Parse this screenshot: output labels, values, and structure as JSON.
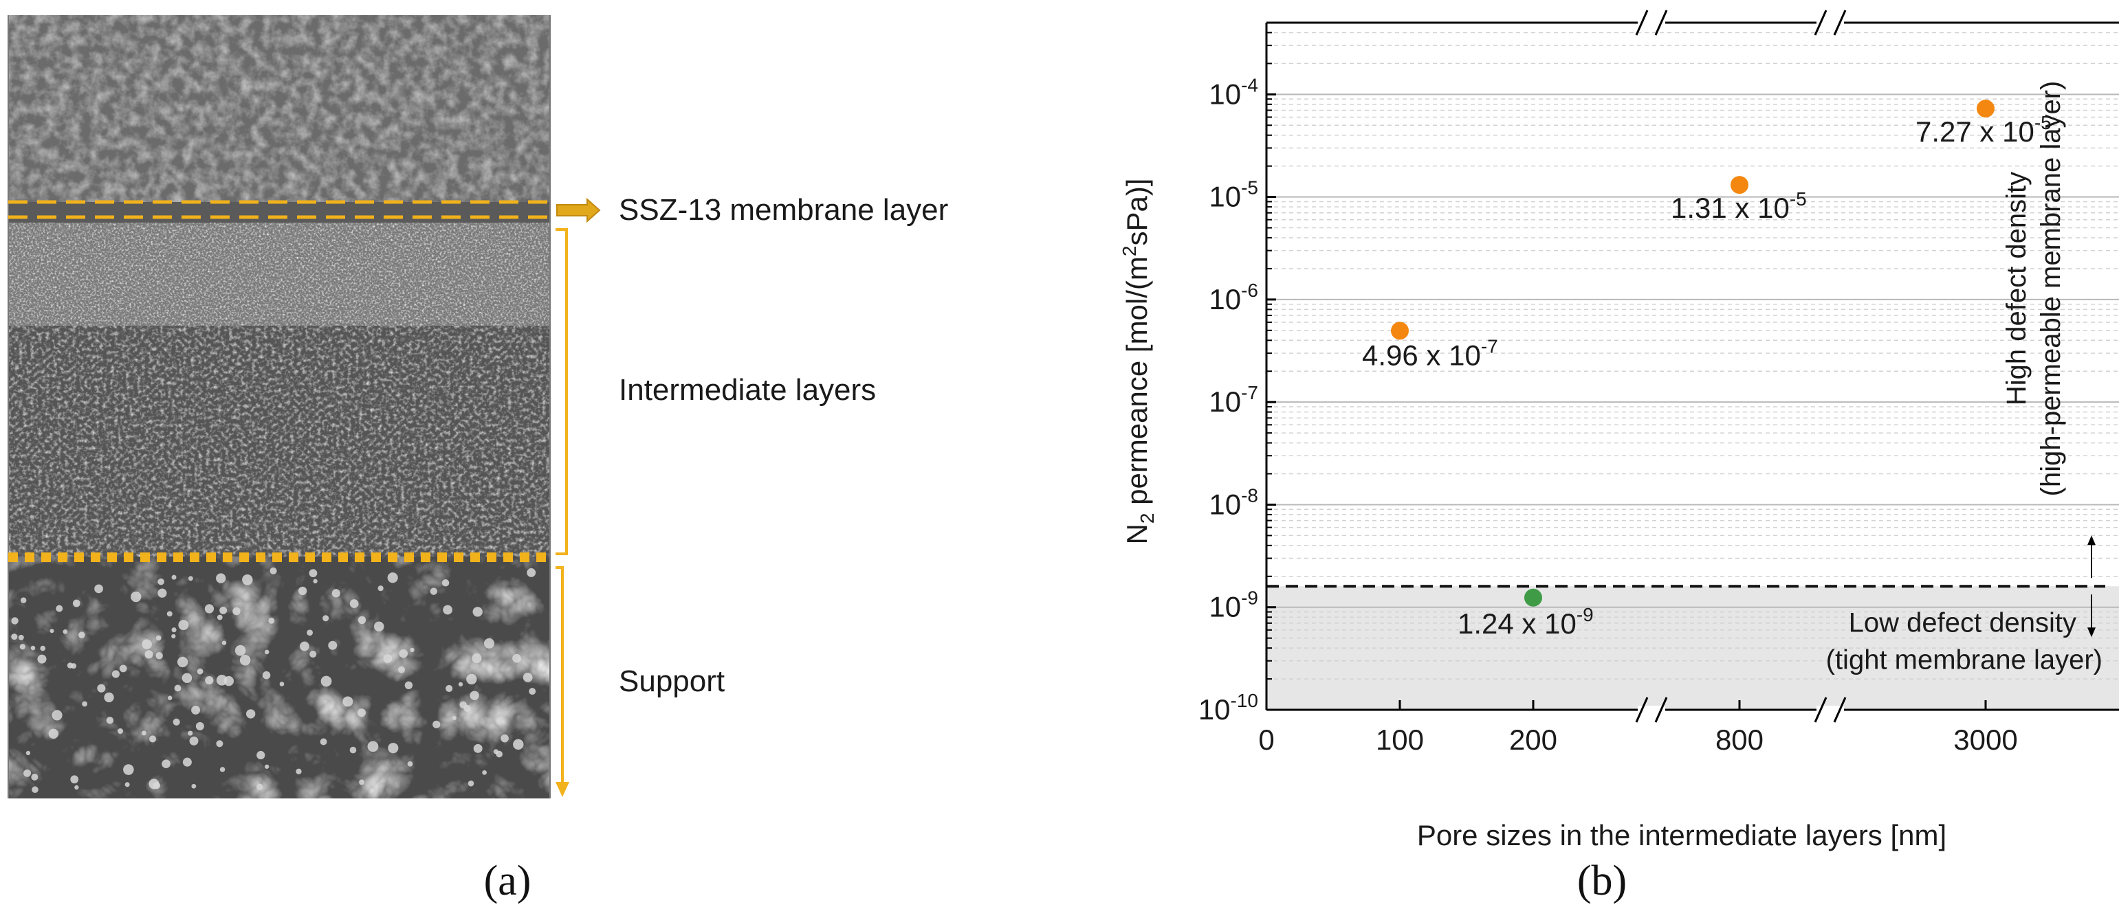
{
  "panel_a": {
    "label": "(a)",
    "layers": [
      {
        "label": "SSZ-13 membrane layer"
      },
      {
        "label": "Intermediate layers"
      },
      {
        "label": "Support"
      }
    ],
    "accent_color": "#f2b21b"
  },
  "panel_b": {
    "label": "(b)"
  },
  "chart_data": {
    "type": "scatter",
    "y_scale": "log",
    "ylim": [
      1e-10,
      0.0005
    ],
    "y_ticks": [
      {
        "value": 1e-10,
        "base": "10",
        "exp": "-10"
      },
      {
        "value": 1e-09,
        "base": "10",
        "exp": "-9"
      },
      {
        "value": 1e-08,
        "base": "10",
        "exp": "-8"
      },
      {
        "value": 1e-07,
        "base": "10",
        "exp": "-7"
      },
      {
        "value": 1e-06,
        "base": "10",
        "exp": "-6"
      },
      {
        "value": 1e-05,
        "base": "10",
        "exp": "-5"
      },
      {
        "value": 0.0001,
        "base": "10",
        "exp": "-4"
      }
    ],
    "x_ticks": [
      "0",
      "100",
      "200",
      "800",
      "3000"
    ],
    "xlabel": "Pore sizes in the intermediate layers [nm]",
    "ylabel": {
      "a": "N",
      "sub": "2",
      "b": " permeance [mol/(m",
      "sup": "2",
      "c": "sPa)]"
    },
    "grid": true,
    "points": [
      {
        "x": 100,
        "y": 4.96e-07,
        "label_base": "4.96 x 10",
        "label_exp": "-7",
        "color": "#f4870f"
      },
      {
        "x": 800,
        "y": 1.31e-05,
        "label_base": "1.31 x 10",
        "label_exp": "-5",
        "color": "#f4870f"
      },
      {
        "x": 3000,
        "y": 7.27e-05,
        "label_base": "7.27 x 10",
        "label_exp": "-5",
        "color": "#f4870f"
      },
      {
        "x": 200,
        "y": 1.24e-09,
        "label_base": "1.24 x 10",
        "label_exp": "-9",
        "color": "#3f9b45"
      }
    ],
    "threshold": {
      "y": 1.6e-09,
      "style": "dashed"
    },
    "annotations": {
      "high": {
        "line1": "High defect density",
        "line2": "(high-permeable membrane layer)"
      },
      "low": {
        "line1": "Low defect density",
        "line2": "(tight membrane layer)"
      }
    },
    "shaded_region_color": "#e6e6e6"
  }
}
